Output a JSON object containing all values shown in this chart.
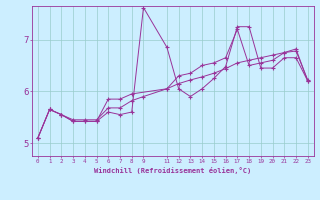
{
  "xlabel": "Windchill (Refroidissement éolien,°C)",
  "background_color": "#cceeff",
  "line_color": "#993399",
  "grid_color": "#99cccc",
  "xlim": [
    -0.5,
    23.5
  ],
  "ylim": [
    4.75,
    7.65
  ],
  "xtick_vals": [
    0,
    1,
    2,
    3,
    4,
    5,
    6,
    7,
    8,
    9,
    11,
    12,
    13,
    14,
    15,
    16,
    17,
    18,
    19,
    20,
    21,
    22,
    23
  ],
  "ytick_vals": [
    5,
    6,
    7
  ],
  "line1_x": [
    0,
    1,
    2,
    3,
    4,
    5,
    6,
    7,
    8,
    9,
    11,
    12,
    13,
    14,
    15,
    16,
    17,
    18,
    19,
    20,
    21,
    22,
    23
  ],
  "line1_y": [
    5.1,
    5.65,
    5.55,
    5.42,
    5.42,
    5.42,
    5.6,
    5.55,
    5.6,
    7.62,
    6.85,
    6.05,
    5.9,
    6.05,
    6.25,
    6.48,
    7.25,
    7.25,
    6.45,
    6.45,
    6.65,
    6.65,
    6.2
  ],
  "line2_x": [
    0,
    1,
    2,
    3,
    4,
    5,
    6,
    7,
    8,
    11,
    12,
    13,
    14,
    15,
    16,
    17,
    18,
    19,
    20,
    21,
    22,
    23
  ],
  "line2_y": [
    5.1,
    5.65,
    5.55,
    5.42,
    5.42,
    5.42,
    5.85,
    5.85,
    5.95,
    6.05,
    6.3,
    6.35,
    6.5,
    6.55,
    6.65,
    7.2,
    6.5,
    6.55,
    6.6,
    6.75,
    6.78,
    6.22
  ],
  "line3_x": [
    0,
    1,
    2,
    3,
    4,
    5,
    6,
    7,
    8,
    9,
    11,
    12,
    13,
    14,
    15,
    16,
    17,
    18,
    19,
    20,
    21,
    22,
    23
  ],
  "line3_y": [
    5.1,
    5.65,
    5.55,
    5.45,
    5.45,
    5.45,
    5.68,
    5.68,
    5.82,
    5.9,
    6.05,
    6.15,
    6.22,
    6.28,
    6.35,
    6.44,
    6.55,
    6.6,
    6.65,
    6.7,
    6.75,
    6.82,
    6.2
  ]
}
